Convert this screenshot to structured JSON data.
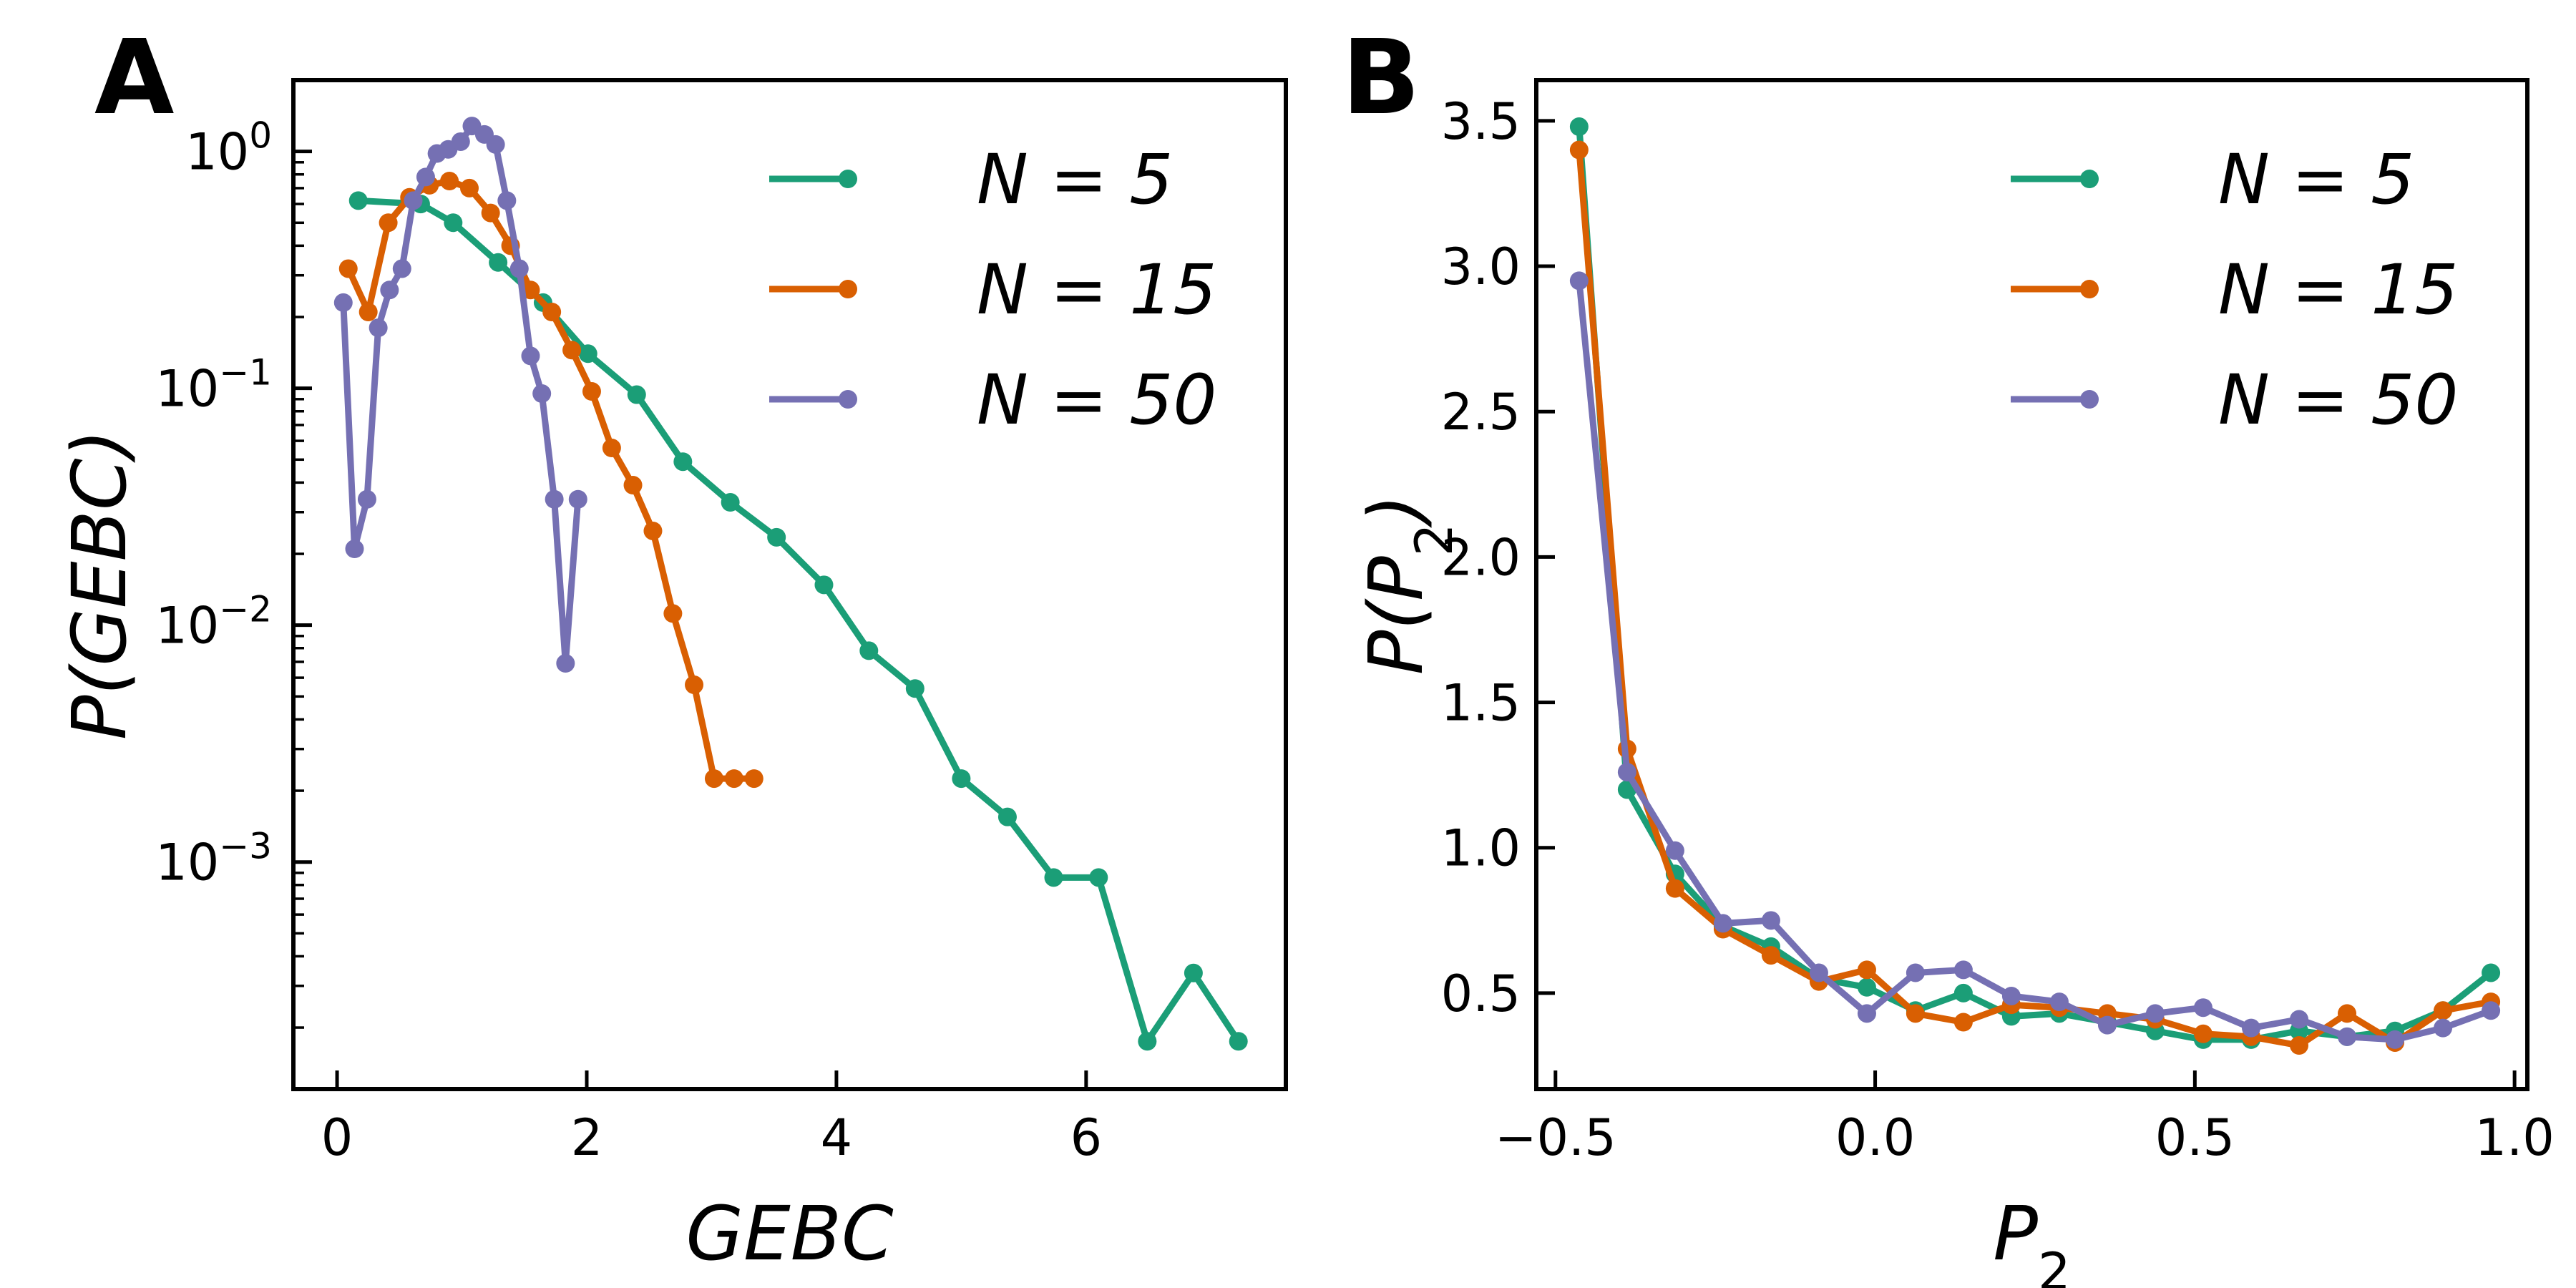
{
  "panels": [
    "A",
    "B"
  ],
  "chart_data": [
    {
      "type": "line",
      "panel": "A",
      "xlabel": "GEBC",
      "ylabel": "P(GEBC)",
      "yscale": "log",
      "xlim": [
        -0.35,
        7.6
      ],
      "ylim": [
        0.00011,
        2.0
      ],
      "xticks": [
        0,
        2,
        4,
        6
      ],
      "xtick_labels": [
        "0",
        "2",
        "4",
        "6"
      ],
      "yticks": [
        0.001,
        0.01,
        0.1,
        1.0
      ],
      "ytick_labels": [
        {
          "base": "10",
          "exp": "−3"
        },
        {
          "base": "10",
          "exp": "−2"
        },
        {
          "base": "10",
          "exp": "−1"
        },
        {
          "base": "10",
          "exp": "0"
        }
      ],
      "legend_position": "top-right",
      "series": [
        {
          "name": "N = 5",
          "color": "#1b9e77",
          "x": [
            0.17,
            0.67,
            0.93,
            1.29,
            1.65,
            2.01,
            2.4,
            2.77,
            3.15,
            3.52,
            3.9,
            4.26,
            4.63,
            5.0,
            5.37,
            5.74,
            6.1,
            6.49,
            6.86,
            7.22
          ],
          "y": [
            0.62,
            0.6,
            0.5,
            0.34,
            0.23,
            0.14,
            0.094,
            0.049,
            0.033,
            0.0235,
            0.0148,
            0.0078,
            0.0054,
            0.00225,
            0.00155,
            0.00086,
            0.00086,
            0.000175,
            0.00034,
            0.000175
          ]
        },
        {
          "name": "N = 15",
          "color": "#d95f02",
          "x": [
            0.09,
            0.25,
            0.41,
            0.58,
            0.74,
            0.9,
            1.06,
            1.23,
            1.39,
            1.55,
            1.72,
            1.88,
            2.04,
            2.2,
            2.37,
            2.53,
            2.69,
            2.86,
            3.02,
            3.18,
            3.34
          ],
          "y": [
            0.32,
            0.21,
            0.5,
            0.64,
            0.72,
            0.75,
            0.7,
            0.55,
            0.4,
            0.26,
            0.21,
            0.145,
            0.097,
            0.056,
            0.039,
            0.025,
            0.0112,
            0.0056,
            0.00225,
            0.00225,
            0.00225
          ]
        },
        {
          "name": "N = 50",
          "color": "#7570b3",
          "x": [
            0.05,
            0.14,
            0.24,
            0.33,
            0.42,
            0.52,
            0.61,
            0.71,
            0.8,
            0.89,
            0.99,
            1.08,
            1.18,
            1.27,
            1.36,
            1.46,
            1.55,
            1.64,
            1.74,
            1.83,
            1.93
          ],
          "y": [
            0.23,
            0.021,
            0.034,
            0.18,
            0.26,
            0.32,
            0.62,
            0.78,
            0.98,
            1.02,
            1.1,
            1.28,
            1.18,
            1.07,
            0.62,
            0.32,
            0.137,
            0.095,
            0.034,
            0.0069,
            0.034
          ]
        }
      ]
    },
    {
      "type": "line",
      "panel": "B",
      "xlabel": "P_2",
      "ylabel": "P(P_2)",
      "xlim": [
        -0.53,
        1.02
      ],
      "ylim": [
        0.17,
        3.64
      ],
      "xticks": [
        -0.5,
        0.0,
        0.5,
        1.0
      ],
      "xtick_labels": [
        "−0.5",
        "0.0",
        "0.5",
        "1.0"
      ],
      "yticks": [
        0.5,
        1.0,
        1.5,
        2.0,
        2.5,
        3.0,
        3.5
      ],
      "ytick_labels": [
        "0.5",
        "1.0",
        "1.5",
        "2.0",
        "2.5",
        "3.0",
        "3.5"
      ],
      "legend_position": "top-right",
      "series": [
        {
          "name": "N = 5",
          "color": "#1b9e77",
          "x": [
            -0.463,
            -0.388,
            -0.313,
            -0.238,
            -0.163,
            -0.088,
            -0.013,
            0.063,
            0.138,
            0.213,
            0.288,
            0.363,
            0.438,
            0.513,
            0.588,
            0.663,
            0.738,
            0.813,
            0.888,
            0.963
          ],
          "y": [
            3.48,
            1.2,
            0.91,
            0.73,
            0.66,
            0.55,
            0.52,
            0.44,
            0.5,
            0.42,
            0.43,
            0.4,
            0.37,
            0.34,
            0.34,
            0.37,
            0.35,
            0.37,
            0.44,
            0.57
          ]
        },
        {
          "name": "N = 15",
          "color": "#d95f02",
          "x": [
            -0.463,
            -0.388,
            -0.313,
            -0.238,
            -0.163,
            -0.088,
            -0.013,
            0.063,
            0.138,
            0.213,
            0.288,
            0.363,
            0.438,
            0.513,
            0.588,
            0.663,
            0.738,
            0.813,
            0.888,
            0.963
          ],
          "y": [
            3.4,
            1.34,
            0.86,
            0.72,
            0.63,
            0.54,
            0.58,
            0.43,
            0.4,
            0.46,
            0.45,
            0.43,
            0.41,
            0.36,
            0.35,
            0.32,
            0.43,
            0.33,
            0.44,
            0.47
          ]
        },
        {
          "name": "N = 50",
          "color": "#7570b3",
          "x": [
            -0.463,
            -0.388,
            -0.313,
            -0.238,
            -0.163,
            -0.088,
            -0.013,
            0.063,
            0.138,
            0.213,
            0.288,
            0.363,
            0.438,
            0.513,
            0.588,
            0.663,
            0.738,
            0.813,
            0.888,
            0.963
          ],
          "y": [
            2.95,
            1.26,
            0.99,
            0.74,
            0.75,
            0.57,
            0.43,
            0.57,
            0.58,
            0.49,
            0.47,
            0.39,
            0.43,
            0.45,
            0.38,
            0.41,
            0.35,
            0.34,
            0.38,
            0.44
          ]
        }
      ]
    }
  ]
}
